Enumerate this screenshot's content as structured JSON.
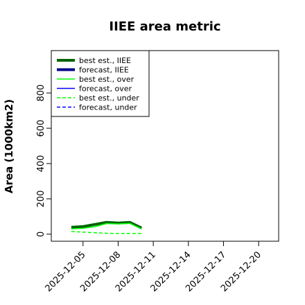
{
  "chart_data": {
    "type": "line",
    "title": "IIEE area metric",
    "y_label": "Area (1000km2)",
    "x": [
      "2025-12-04",
      "2025-12-05",
      "2025-12-06",
      "2025-12-07",
      "2025-12-08",
      "2025-12-09",
      "2025-12-10"
    ],
    "series": [
      {
        "name": "best est., IIEE",
        "color": "#006400",
        "width": 4,
        "dash": "solid",
        "values": [
          39,
          43,
          55,
          67,
          63,
          67,
          35
        ]
      },
      {
        "name": "forecast, IIEE",
        "color": "#00008b",
        "width": 4,
        "dash": "solid",
        "values": [
          null,
          null,
          null,
          null,
          null,
          null,
          null
        ]
      },
      {
        "name": "best est., over",
        "color": "#00ff00",
        "width": 1.5,
        "dash": "solid",
        "values": [
          30,
          33,
          42,
          60,
          58,
          61,
          30
        ]
      },
      {
        "name": "forecast, over",
        "color": "#0000ff",
        "width": 1.5,
        "dash": "solid",
        "values": [
          null,
          null,
          null,
          null,
          null,
          null,
          null
        ]
      },
      {
        "name": "best est., under",
        "color": "#00ff00",
        "width": 1.5,
        "dash": "dashed",
        "values": [
          15,
          12,
          8,
          5,
          4,
          4,
          4
        ]
      },
      {
        "name": "forecast, under",
        "color": "#0000ff",
        "width": 1.5,
        "dash": "dashed",
        "values": [
          null,
          null,
          null,
          null,
          null,
          null,
          null
        ]
      }
    ],
    "xlim": [
      "2025-12-02T07:00",
      "2025-12-21T17:00"
    ],
    "xticks": [
      "2025-12-05",
      "2025-12-08",
      "2025-12-11",
      "2025-12-14",
      "2025-12-17",
      "2025-12-20"
    ],
    "highlight_xtick_index": 2,
    "highlight_color": "#228b22",
    "ylim": [
      -40,
      1040
    ],
    "yticks": [
      0,
      200,
      400,
      600,
      800
    ],
    "legend": "top-left"
  }
}
